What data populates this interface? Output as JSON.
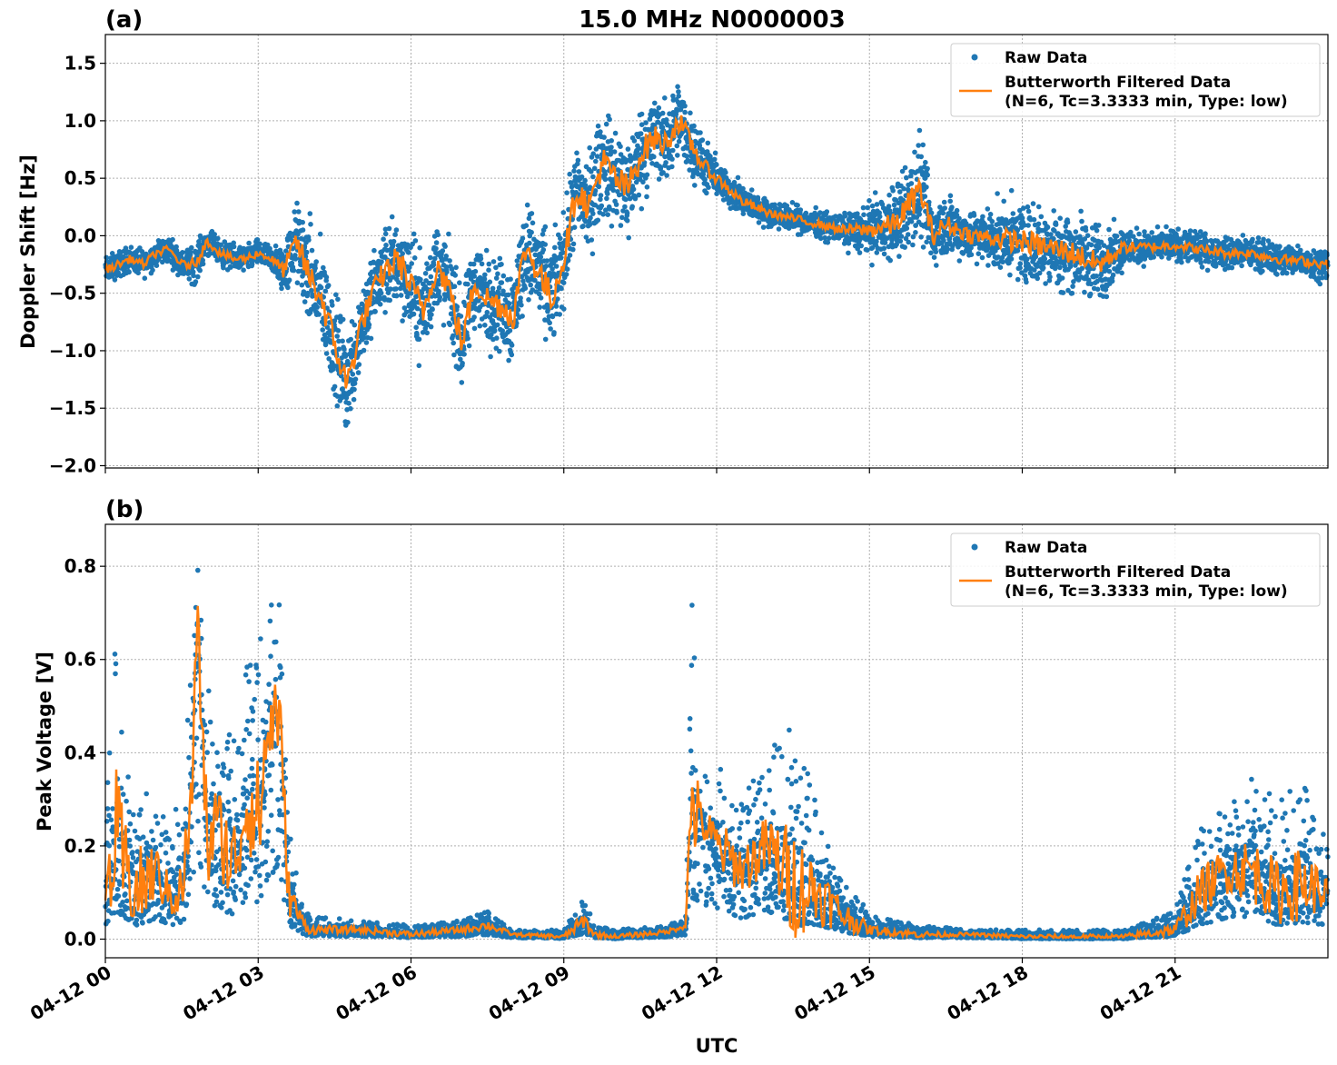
{
  "figure": {
    "title": "15.0 MHz N0000003",
    "xlabel": "UTC",
    "x_ticks": [
      "04-12 00",
      "04-12 03",
      "04-12 06",
      "04-12 09",
      "04-12 12",
      "04-12 15",
      "04-12 18",
      "04-12 21"
    ]
  },
  "colors": {
    "raw": "#1f77b4",
    "filtered": "#ff7f0e",
    "grid": "#b0b0b0"
  },
  "chart_data": [
    {
      "type": "scatter",
      "panel_label": "(a)",
      "ylabel": "Doppler Shift [Hz]",
      "ylim": [
        -2.02,
        1.75
      ],
      "xlim_hours": [
        0,
        24
      ],
      "y_ticks": [
        {
          "value": 1.5,
          "label": "1.5"
        },
        {
          "value": 1.0,
          "label": "1.0"
        },
        {
          "value": 0.5,
          "label": "0.5"
        },
        {
          "value": 0.0,
          "label": "0.0"
        },
        {
          "value": -0.5,
          "label": "−0.5"
        },
        {
          "value": -1.0,
          "label": "−1.0"
        },
        {
          "value": -1.5,
          "label": "−1.5"
        },
        {
          "value": -2.0,
          "label": "−2.0"
        }
      ],
      "grid": true,
      "legend_position": "top-right",
      "legend": {
        "raw": "Raw Data",
        "filtered_line1": "Butterworth Filtered Data",
        "filtered_line2": "(N=6, Tc=3.3333 min, Type: low)"
      },
      "series": [
        {
          "name": "Butterworth Filtered Data",
          "kind": "line",
          "x_hours": [
            0,
            0.25,
            0.5,
            0.75,
            1.0,
            1.25,
            1.5,
            1.75,
            2.0,
            2.25,
            2.5,
            2.75,
            3.0,
            3.25,
            3.5,
            3.75,
            4.0,
            4.25,
            4.5,
            4.75,
            5.0,
            5.25,
            5.5,
            5.75,
            6.0,
            6.25,
            6.5,
            6.75,
            7.0,
            7.25,
            7.5,
            7.75,
            8.0,
            8.25,
            8.5,
            8.75,
            9.0,
            9.25,
            9.5,
            9.75,
            10.0,
            10.25,
            10.5,
            10.75,
            11.0,
            11.25,
            11.5,
            11.75,
            12.0,
            12.5,
            13.0,
            13.5,
            14.0,
            14.5,
            15.0,
            15.5,
            16.0,
            16.25,
            16.5,
            16.75,
            17.0,
            17.5,
            18.0,
            18.5,
            19.0,
            19.5,
            20.0,
            20.5,
            21.0,
            21.5,
            22.0,
            22.5,
            23.0,
            23.5,
            24.0
          ],
          "y": [
            -0.3,
            -0.25,
            -0.2,
            -0.25,
            -0.15,
            -0.12,
            -0.25,
            -0.25,
            -0.05,
            -0.15,
            -0.2,
            -0.2,
            -0.15,
            -0.2,
            -0.3,
            -0.05,
            -0.35,
            -0.55,
            -0.95,
            -1.3,
            -0.8,
            -0.5,
            -0.3,
            -0.2,
            -0.45,
            -0.65,
            -0.25,
            -0.45,
            -0.95,
            -0.4,
            -0.55,
            -0.6,
            -0.7,
            -0.1,
            -0.3,
            -0.55,
            -0.2,
            0.4,
            0.25,
            0.65,
            0.5,
            0.4,
            0.7,
            0.85,
            0.8,
            1.0,
            0.8,
            0.6,
            0.5,
            0.3,
            0.2,
            0.15,
            0.1,
            0.05,
            0.05,
            0.1,
            0.4,
            0.0,
            0.1,
            0.05,
            0.0,
            -0.02,
            -0.05,
            -0.1,
            -0.15,
            -0.25,
            -0.1,
            -0.1,
            -0.08,
            -0.12,
            -0.15,
            -0.15,
            -0.2,
            -0.22,
            -0.25
          ]
        },
        {
          "name": "Raw Data",
          "kind": "points",
          "note_scatter_half_width": [
            0.1,
            0.1,
            0.1,
            0.1,
            0.1,
            0.1,
            0.1,
            0.15,
            0.1,
            0.1,
            0.1,
            0.1,
            0.1,
            0.1,
            0.2,
            0.3,
            0.4,
            0.4,
            0.4,
            0.4,
            0.35,
            0.3,
            0.35,
            0.35,
            0.4,
            0.4,
            0.35,
            0.35,
            0.35,
            0.35,
            0.35,
            0.35,
            0.4,
            0.35,
            0.4,
            0.4,
            0.35,
            0.35,
            0.4,
            0.4,
            0.4,
            0.4,
            0.35,
            0.35,
            0.3,
            0.3,
            0.25,
            0.2,
            0.15,
            0.12,
            0.1,
            0.1,
            0.1,
            0.12,
            0.2,
            0.3,
            0.4,
            0.25,
            0.25,
            0.2,
            0.2,
            0.25,
            0.3,
            0.3,
            0.3,
            0.3,
            0.15,
            0.12,
            0.12,
            0.12,
            0.12,
            0.12,
            0.12,
            0.12,
            0.12
          ]
        }
      ]
    },
    {
      "type": "scatter",
      "panel_label": "(b)",
      "ylabel": "Peak Voltage [V]",
      "ylim": [
        -0.04,
        0.89
      ],
      "xlim_hours": [
        0,
        24
      ],
      "y_ticks": [
        {
          "value": 0.8,
          "label": "0.8"
        },
        {
          "value": 0.6,
          "label": "0.6"
        },
        {
          "value": 0.4,
          "label": "0.4"
        },
        {
          "value": 0.2,
          "label": "0.2"
        },
        {
          "value": 0.0,
          "label": "0.0"
        }
      ],
      "grid": true,
      "legend_position": "top-right",
      "legend": {
        "raw": "Raw Data",
        "filtered_line1": "Butterworth Filtered Data",
        "filtered_line2": "(N=6, Tc=3.3333 min, Type: low)"
      },
      "series": [
        {
          "name": "Butterworth Filtered Data",
          "kind": "line",
          "x_hours": [
            0,
            0.2,
            0.4,
            0.6,
            0.8,
            1.0,
            1.2,
            1.5,
            1.7,
            1.8,
            2.0,
            2.2,
            2.5,
            2.8,
            3.0,
            3.2,
            3.4,
            3.6,
            3.8,
            4.0,
            5.0,
            6.0,
            7.0,
            7.5,
            8.0,
            9.0,
            9.4,
            9.6,
            10.0,
            11.0,
            11.4,
            11.5,
            11.7,
            12.0,
            12.5,
            13.0,
            13.5,
            14.0,
            14.5,
            15.0,
            16.0,
            17.0,
            18.0,
            19.0,
            20.0,
            21.0,
            21.5,
            22.0,
            22.5,
            23.0,
            23.5,
            24.0
          ],
          "y": [
            0.1,
            0.2,
            0.15,
            0.1,
            0.12,
            0.15,
            0.1,
            0.1,
            0.3,
            0.7,
            0.2,
            0.25,
            0.15,
            0.3,
            0.25,
            0.45,
            0.5,
            0.1,
            0.05,
            0.02,
            0.02,
            0.01,
            0.02,
            0.03,
            0.01,
            0.005,
            0.04,
            0.01,
            0.005,
            0.015,
            0.03,
            0.3,
            0.25,
            0.2,
            0.15,
            0.2,
            0.12,
            0.1,
            0.05,
            0.02,
            0.01,
            0.01,
            0.005,
            0.005,
            0.005,
            0.02,
            0.1,
            0.15,
            0.15,
            0.1,
            0.12,
            0.1
          ]
        },
        {
          "name": "Raw Data",
          "kind": "points",
          "note_envelope_top": [
            0.25,
            0.7,
            0.45,
            0.35,
            0.4,
            0.3,
            0.25,
            0.3,
            0.6,
            0.85,
            0.55,
            0.5,
            0.45,
            0.6,
            0.65,
            0.8,
            0.8,
            0.25,
            0.1,
            0.05,
            0.04,
            0.03,
            0.04,
            0.06,
            0.02,
            0.02,
            0.09,
            0.03,
            0.02,
            0.03,
            0.05,
            0.75,
            0.35,
            0.38,
            0.3,
            0.4,
            0.48,
            0.3,
            0.15,
            0.05,
            0.03,
            0.02,
            0.02,
            0.02,
            0.02,
            0.06,
            0.25,
            0.3,
            0.35,
            0.3,
            0.35,
            0.2
          ]
        }
      ]
    }
  ]
}
